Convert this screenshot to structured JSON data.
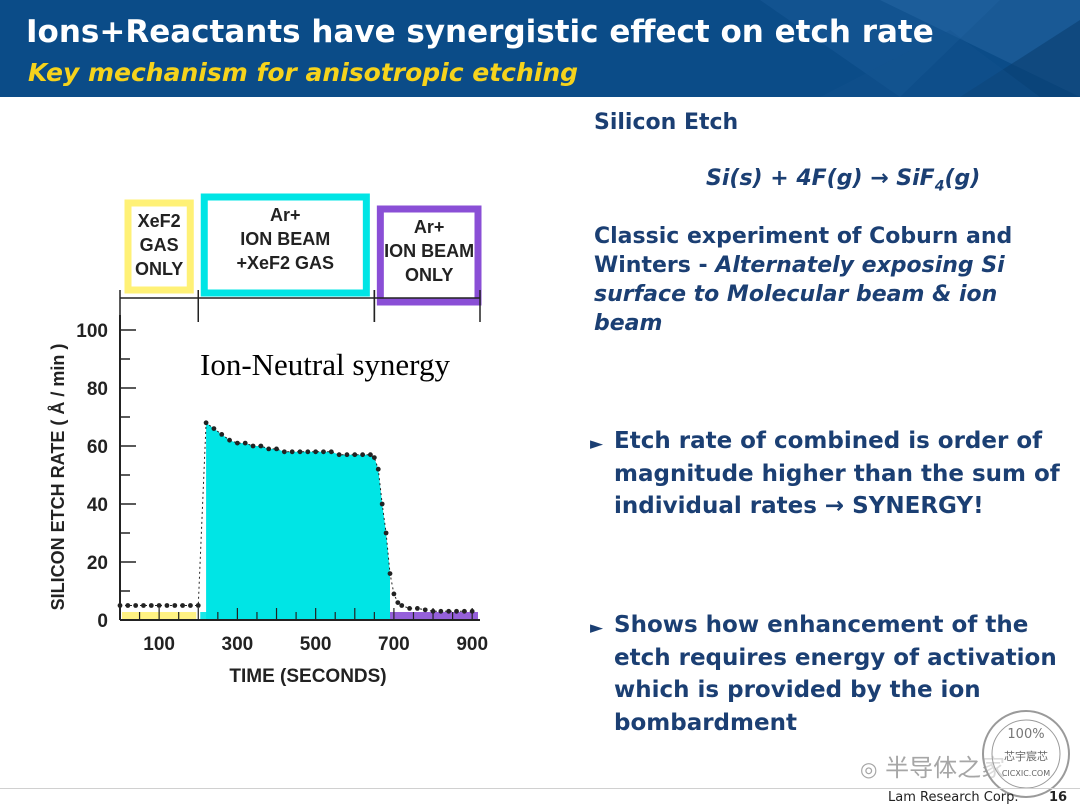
{
  "header": {
    "title": "Ions+Reactants have synergistic effect on etch rate",
    "subtitle": "Key mechanism for anisotropic etching"
  },
  "chart_data": {
    "type": "area",
    "ylabel": "SILICON ETCH RATE ( Å / min )",
    "xlabel": "TIME (SECONDS)",
    "annotation": "Ion-Neutral synergy",
    "ylim": [
      0,
      100
    ],
    "xlim": [
      0,
      920
    ],
    "x_ticks": [
      100,
      300,
      500,
      700,
      900
    ],
    "y_ticks": [
      0,
      20,
      40,
      60,
      80,
      100
    ],
    "phases": [
      {
        "label_lines": [
          "XeF2",
          "GAS",
          "ONLY"
        ],
        "start": 0,
        "end": 200,
        "color": "#fff176"
      },
      {
        "label_lines": [
          "Ar+",
          "ION BEAM",
          "+XeF2 GAS"
        ],
        "start": 200,
        "end": 650,
        "color": "#00e5e5"
      },
      {
        "label_lines": [
          "Ar+",
          "ION BEAM",
          "ONLY"
        ],
        "start": 650,
        "end": 920,
        "color": "#8a4fd6"
      }
    ],
    "series": [
      {
        "x": [
          0,
          20,
          40,
          60,
          80,
          100,
          120,
          140,
          160,
          180,
          200,
          220,
          240,
          260,
          280,
          300,
          320,
          340,
          360,
          380,
          400,
          420,
          440,
          460,
          480,
          500,
          520,
          540,
          560,
          580,
          600,
          620,
          640,
          650,
          660,
          670,
          680,
          690,
          700,
          710,
          720,
          740,
          760,
          780,
          800,
          820,
          840,
          860,
          880,
          900
        ],
        "y": [
          5,
          5,
          5,
          5,
          5,
          5,
          5,
          5,
          5,
          5,
          5,
          68,
          66,
          64,
          62,
          61,
          61,
          60,
          60,
          59,
          59,
          58,
          58,
          58,
          58,
          58,
          58,
          58,
          57,
          57,
          57,
          57,
          57,
          56,
          52,
          40,
          30,
          16,
          9,
          6,
          5,
          4,
          4,
          3.5,
          3,
          3,
          3,
          3,
          3,
          3
        ]
      }
    ]
  },
  "right": {
    "section_title": "Silicon Etch",
    "equation": {
      "pre": "Si(s) + 4F(g) ",
      "arrow": "→",
      "post_a": " SiF",
      "sub": "4",
      "post_b": "(g)"
    },
    "classic_normal": "Classic experiment of Coburn and Winters - ",
    "classic_italic": "Alternately exposing Si surface to Molecular beam & ion beam",
    "bullet1": "Etch rate of combined is order of magnitude higher than the sum of individual rates → SYNERGY!",
    "bullet2": "Shows how enhancement of the etch requires energy of activation which is provided by the ion bombardment",
    "bullet_icon": "triangle-bullet-icon"
  },
  "footer": {
    "company": "Lam Research Corp.",
    "page": "16"
  },
  "watermark": {
    "text": "半导体之家",
    "seal_top": "100%",
    "seal_mid": "芯宇宸芯",
    "seal_bottom": "CICXIC.COM"
  },
  "colors": {
    "header_bg": "#0b4c88",
    "subtitle": "#f6d31c",
    "body_text": "#1b3f73",
    "synergy_fill": "#00e5e5"
  }
}
